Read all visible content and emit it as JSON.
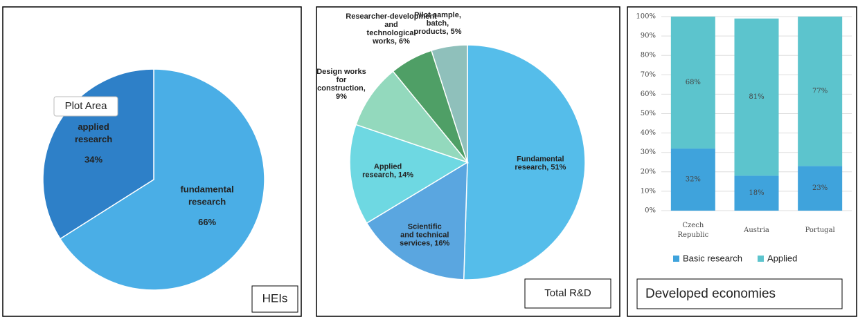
{
  "chart_data": [
    {
      "type": "pie",
      "categories": [
        "fundamental research",
        "applied research"
      ],
      "values": [
        66,
        34
      ],
      "value_labels": [
        "66%",
        "34%"
      ],
      "colors": [
        "#4aaee6",
        "#2e80c8"
      ],
      "annotations": [
        "Plot Area",
        "HEIs"
      ]
    },
    {
      "type": "pie",
      "values": [
        51,
        16,
        14,
        9,
        6,
        5
      ],
      "value_labels": [
        "Fundamental research, 51%",
        "Scientific and technical services, 16%",
        "Applied research, 14%",
        "Design works for construction, 9%",
        "Researcher-development and technological works, 6%",
        "Pilot sample, batch, products, 5%"
      ],
      "colors": [
        "#55bdea",
        "#5aa6e0",
        "#6ed8e2",
        "#93d9bd",
        "#4f9f66",
        "#8fc0bb"
      ],
      "annotations": [
        "Total R&D"
      ]
    },
    {
      "type": "stacked_bar",
      "categories": [
        "Czech Republic",
        "Austria",
        "Portugal"
      ],
      "series": [
        {
          "name": "Basic research",
          "color": "#3fa3dc",
          "values": [
            32,
            18,
            23
          ],
          "value_labels": [
            "32%",
            "18%",
            "23%"
          ]
        },
        {
          "name": "Applied",
          "color": "#5cc4cd",
          "values": [
            68,
            81,
            77
          ],
          "value_labels": [
            "68%",
            "81%",
            "77%"
          ]
        }
      ],
      "ylim": [
        0,
        100
      ],
      "yticks": [
        {
          "value": 0,
          "label": "0%"
        },
        {
          "value": 10,
          "label": "10%"
        },
        {
          "value": 20,
          "label": "20%"
        },
        {
          "value": 30,
          "label": "30%"
        },
        {
          "value": 40,
          "label": "40%"
        },
        {
          "value": 50,
          "label": "50%"
        },
        {
          "value": 60,
          "label": "60%"
        },
        {
          "value": 70,
          "label": "70%"
        },
        {
          "value": 80,
          "label": "80%"
        },
        {
          "value": 90,
          "label": "90%"
        },
        {
          "value": 100,
          "label": "100%"
        }
      ],
      "grid": true,
      "legend": "bottom",
      "annotations": [
        "Developed economies"
      ]
    }
  ]
}
